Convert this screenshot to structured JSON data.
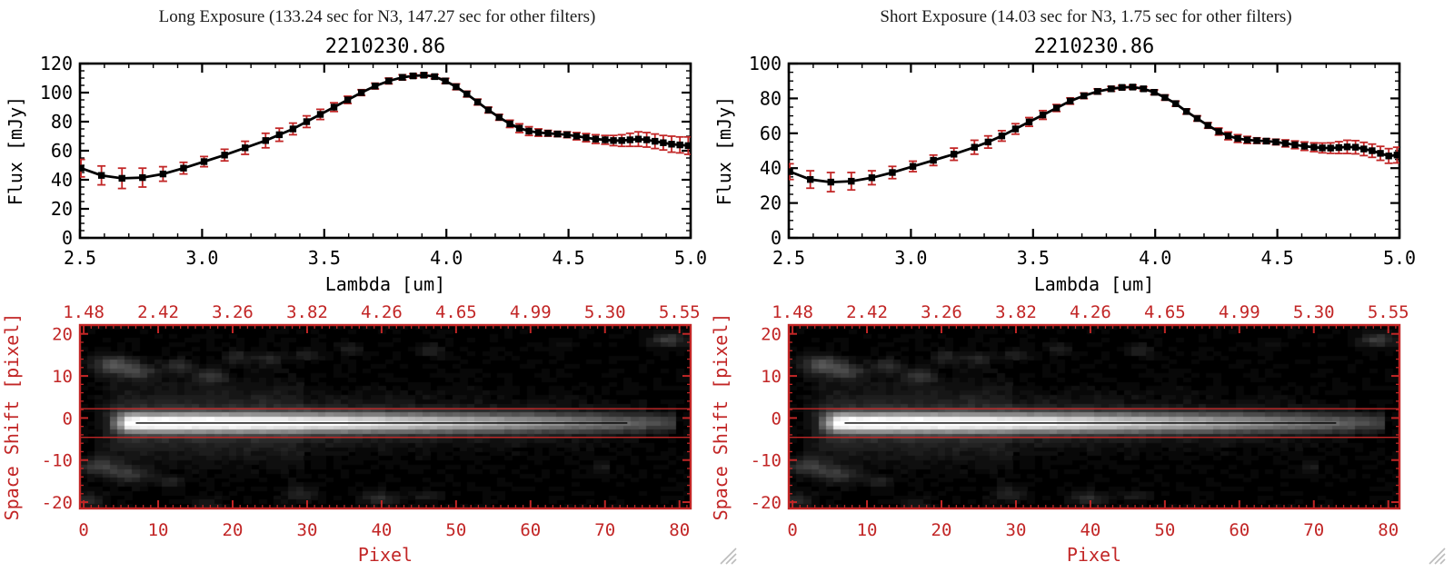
{
  "colors": {
    "red": "#c22626",
    "black": "#000000",
    "background": "#ffffff",
    "grip": "#bcbcbc"
  },
  "panels": [
    {
      "title": "Long Exposure (133.24 sec for N3, 147.27 sec for other filters)",
      "subtitle": "2210230.86"
    },
    {
      "title": "Short Exposure (14.03 sec for N3, 1.75 sec for other filters)",
      "subtitle": "2210230.86"
    }
  ],
  "chart_data": [
    {
      "type": "line",
      "title": "2210230.86",
      "xlabel": "Lambda [um]",
      "ylabel": "Flux [mJy]",
      "xlim": [
        2.5,
        5.0
      ],
      "ylim": [
        0,
        120
      ],
      "xticks": [
        2.5,
        3.0,
        3.5,
        4.0,
        4.5,
        5.0
      ],
      "yticks": [
        0,
        20,
        40,
        60,
        80,
        100,
        120
      ],
      "x_minor_step": 0.1,
      "y_minor_step": 5,
      "marker": "filled-square",
      "line_color": "#000000",
      "error_color": "#c22626",
      "grid": false,
      "x": [
        2.504,
        2.588,
        2.672,
        2.756,
        2.84,
        2.924,
        3.008,
        3.092,
        3.176,
        3.26,
        3.316,
        3.372,
        3.428,
        3.484,
        3.54,
        3.596,
        3.652,
        3.708,
        3.764,
        3.82,
        3.864,
        3.908,
        3.952,
        3.996,
        4.04,
        4.084,
        4.128,
        4.172,
        4.216,
        4.26,
        4.299,
        4.338,
        4.377,
        4.416,
        4.455,
        4.494,
        4.533,
        4.572,
        4.611,
        4.65,
        4.684,
        4.718,
        4.752,
        4.786,
        4.82,
        4.854,
        4.888,
        4.922,
        4.956,
        4.99
      ],
      "y": [
        48,
        43,
        41,
        41.5,
        44,
        48,
        52.5,
        57,
        62,
        67,
        71,
        75,
        80,
        85,
        90,
        95,
        100,
        104.5,
        108,
        110.5,
        111.5,
        112,
        111,
        108,
        104,
        99,
        93.5,
        88,
        83,
        78.5,
        75.5,
        73.5,
        72.5,
        72,
        71.5,
        71,
        70,
        69,
        68,
        67.5,
        67,
        67,
        67.5,
        68,
        67.5,
        66.5,
        65.5,
        64.5,
        64,
        63.5
      ],
      "yerr": [
        6,
        6.5,
        7,
        6.5,
        5,
        4,
        3.5,
        4,
        4.5,
        5,
        4.5,
        4,
        4,
        3.5,
        3,
        2.5,
        2,
        2,
        2,
        1.8,
        1.5,
        1.5,
        1.5,
        1.8,
        2,
        2,
        2,
        2,
        2,
        2.5,
        3,
        3,
        2.5,
        2,
        1.8,
        2,
        2.5,
        2.8,
        3,
        3,
        3.5,
        4,
        4.5,
        5,
        5,
        5,
        5,
        5.5,
        5.5,
        6
      ]
    },
    {
      "type": "heatmap",
      "xlabel": "Pixel",
      "ylabel": "Space Shift [pixel]",
      "xlim": [
        0,
        82
      ],
      "ylim": [
        -21.5,
        22.1
      ],
      "xticks": [
        0,
        10,
        20,
        30,
        40,
        50,
        60,
        70,
        80
      ],
      "yticks": [
        20,
        10,
        0,
        -10,
        -20
      ],
      "x_minor_step": 1,
      "y_minor_step": 2,
      "top_tick_labels": [
        "1.48",
        "2.42",
        "3.26",
        "3.82",
        "4.26",
        "4.65",
        "4.99",
        "5.30",
        "5.55"
      ],
      "frame_color": "#c22626",
      "overlays": {
        "aperture_lines_shift": [
          2.2,
          -4.6
        ],
        "trace_line_shift": -1.2,
        "trace_line_x": [
          7,
          73
        ],
        "line_color": "#c22626",
        "trace_color": "#000000"
      },
      "image_model": {
        "seed": 7,
        "grid": {
          "cols": 82,
          "rows": 42
        },
        "streak": {
          "center_shift": -1.2,
          "sigma": 1.55,
          "x_start": 3,
          "x_full": 8,
          "x_fade_from": 16,
          "x_end": 79.5,
          "fade_depth": 0.75,
          "fade_exponent": 1.3
        },
        "halo": {
          "amplitude": 0.16,
          "sigma_left": 6.0,
          "sigma_right": 4.2,
          "x_fade_start": 28,
          "x_end": 76
        },
        "blobs": [
          [
            4.5,
            12.5,
            0.3,
            2.0,
            1.6
          ],
          [
            8,
            11,
            0.2,
            1.5,
            1.2
          ],
          [
            13,
            12.5,
            0.16,
            1.4,
            1.1
          ],
          [
            17.5,
            10,
            0.18,
            1.5,
            1.1
          ],
          [
            21,
            14.5,
            0.14,
            1.3,
            1.0
          ],
          [
            25.5,
            14,
            0.16,
            1.4,
            1.0
          ],
          [
            30.5,
            15,
            0.12,
            1.2,
            0.9
          ],
          [
            36,
            16.5,
            0.1,
            1.2,
            0.9
          ],
          [
            47,
            16,
            0.14,
            1.2,
            1.0
          ],
          [
            64.5,
            17.5,
            0.08,
            1.0,
            0.8
          ],
          [
            79,
            18.5,
            0.2,
            1.6,
            1.3
          ],
          [
            2.5,
            -11.5,
            0.22,
            1.8,
            1.5
          ],
          [
            6.5,
            -13.5,
            0.2,
            1.8,
            1.4
          ],
          [
            12,
            -15,
            0.1,
            1.3,
            1.0
          ],
          [
            29.5,
            -18,
            0.14,
            1.6,
            1.2
          ],
          [
            40,
            -19,
            0.16,
            1.8,
            1.2
          ],
          [
            46.5,
            -18.5,
            0.12,
            1.4,
            1.0
          ],
          [
            70,
            -11.5,
            0.1,
            1.0,
            0.8
          ],
          [
            1,
            -19.5,
            0.18,
            1.5,
            1.2
          ],
          [
            17,
            -20.5,
            0.1,
            1.4,
            1.0
          ]
        ],
        "noise": 0.05
      }
    },
    {
      "type": "line",
      "title": "2210230.86",
      "xlabel": "Lambda [um]",
      "ylabel": "Flux [mJy]",
      "xlim": [
        2.5,
        5.0
      ],
      "ylim": [
        0,
        100
      ],
      "xticks": [
        2.5,
        3.0,
        3.5,
        4.0,
        4.5,
        5.0
      ],
      "yticks": [
        0,
        20,
        40,
        60,
        80,
        100
      ],
      "x_minor_step": 0.1,
      "y_minor_step": 5,
      "marker": "filled-square",
      "line_color": "#000000",
      "error_color": "#c22626",
      "grid": false,
      "x": [
        2.504,
        2.588,
        2.672,
        2.756,
        2.84,
        2.924,
        3.008,
        3.092,
        3.176,
        3.26,
        3.316,
        3.372,
        3.428,
        3.484,
        3.54,
        3.596,
        3.652,
        3.708,
        3.764,
        3.82,
        3.864,
        3.908,
        3.952,
        3.996,
        4.04,
        4.084,
        4.128,
        4.172,
        4.216,
        4.26,
        4.299,
        4.338,
        4.377,
        4.416,
        4.455,
        4.494,
        4.533,
        4.572,
        4.611,
        4.65,
        4.684,
        4.718,
        4.752,
        4.786,
        4.82,
        4.854,
        4.888,
        4.922,
        4.956,
        4.99
      ],
      "y": [
        38,
        33.5,
        32,
        32.5,
        34.5,
        37.5,
        41,
        44.5,
        48,
        52,
        55,
        58.5,
        62.5,
        66.5,
        70.5,
        74.5,
        78.5,
        81.5,
        84,
        85.5,
        86.3,
        86.5,
        85.5,
        83.5,
        80.5,
        77,
        72.5,
        68.5,
        64.5,
        61,
        58.5,
        57,
        56.2,
        55.8,
        55.5,
        55,
        54.2,
        53.4,
        52.6,
        52,
        51.6,
        51.5,
        51.8,
        52.2,
        52,
        51,
        50,
        48.5,
        47,
        47.5
      ],
      "yerr": [
        4.5,
        5,
        5.5,
        5,
        4,
        3.5,
        3,
        3,
        3.5,
        4,
        3.5,
        3,
        3,
        2.5,
        2.5,
        2,
        1.8,
        1.6,
        1.5,
        1.4,
        1.2,
        1.2,
        1.2,
        1.4,
        1.5,
        1.5,
        1.5,
        1.5,
        1.6,
        2,
        2.2,
        2.2,
        2,
        1.6,
        1.4,
        1.6,
        2,
        2.2,
        2.4,
        2.5,
        2.8,
        3,
        3.4,
        3.8,
        3.8,
        3.8,
        3.8,
        4,
        4.2,
        4.5
      ]
    },
    {
      "type": "heatmap",
      "xlabel": "Pixel",
      "ylabel": "Space Shift [pixel]",
      "xlim": [
        0,
        82
      ],
      "ylim": [
        -21.5,
        22.1
      ],
      "xticks": [
        0,
        10,
        20,
        30,
        40,
        50,
        60,
        70,
        80
      ],
      "yticks": [
        20,
        10,
        0,
        -10,
        -20
      ],
      "x_minor_step": 1,
      "y_minor_step": 2,
      "top_tick_labels": [
        "1.48",
        "2.42",
        "3.26",
        "3.82",
        "4.26",
        "4.65",
        "4.99",
        "5.30",
        "5.55"
      ],
      "frame_color": "#c22626",
      "overlays": {
        "aperture_lines_shift": [
          2.2,
          -4.6
        ],
        "trace_line_shift": -1.2,
        "trace_line_x": [
          7,
          73
        ],
        "line_color": "#c22626",
        "trace_color": "#000000"
      },
      "image_model_ref": 1
    }
  ]
}
